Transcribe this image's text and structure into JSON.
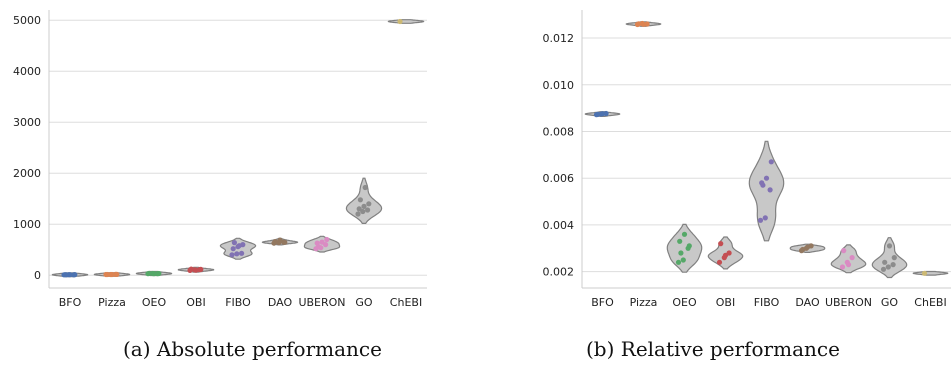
{
  "captions": {
    "a": "(a) Absolute performance",
    "b": "(b) Relative performance"
  },
  "chart_data": [
    {
      "type": "violin",
      "title": "",
      "xlabel": "",
      "ylabel": "",
      "categories": [
        "BFO",
        "Pizza",
        "OEO",
        "OBI",
        "FIBO",
        "DAO",
        "UBERON",
        "GO",
        "ChEBI"
      ],
      "colors": [
        "#4c72b0",
        "#dd8452",
        "#55a868",
        "#c44e52",
        "#8172b3",
        "#937860",
        "#da8bc3",
        "#8c8c8c",
        "#ccb974"
      ],
      "ylim": [
        -250,
        5200
      ],
      "yticks": [
        0,
        1000,
        2000,
        3000,
        4000,
        5000
      ],
      "grid": "horizontal",
      "series": [
        {
          "category": "BFO",
          "points": [
            8,
            10,
            9,
            11,
            10,
            12,
            9
          ]
        },
        {
          "category": "Pizza",
          "points": [
            14,
            15,
            16,
            15,
            14,
            16
          ]
        },
        {
          "category": "OEO",
          "points": [
            30,
            35,
            33,
            38,
            32,
            34
          ]
        },
        {
          "category": "OBI",
          "points": [
            95,
            105,
            110,
            120,
            100,
            115
          ]
        },
        {
          "category": "FIBO",
          "points": [
            400,
            420,
            430,
            520,
            560,
            600,
            640,
            580
          ]
        },
        {
          "category": "DAO",
          "points": [
            630,
            640,
            650,
            660,
            690,
            645
          ]
        },
        {
          "category": "UBERON",
          "points": [
            520,
            540,
            600,
            630,
            650,
            700,
            560
          ]
        },
        {
          "category": "GO",
          "points": [
            1200,
            1250,
            1280,
            1300,
            1350,
            1400,
            1480,
            1720
          ]
        },
        {
          "category": "ChEBI",
          "points": [
            4975
          ]
        }
      ]
    },
    {
      "type": "violin",
      "title": "",
      "xlabel": "",
      "ylabel": "",
      "categories": [
        "BFO",
        "Pizza",
        "OEO",
        "OBI",
        "FIBO",
        "DAO",
        "UBERON",
        "GO",
        "ChEBI"
      ],
      "colors": [
        "#4c72b0",
        "#dd8452",
        "#55a868",
        "#c44e52",
        "#8172b3",
        "#937860",
        "#da8bc3",
        "#8c8c8c",
        "#ccb974"
      ],
      "ylim": [
        0.0013,
        0.0132
      ],
      "yticks": [
        0.002,
        0.004,
        0.006,
        0.008,
        0.01,
        0.012
      ],
      "tick_labels": [
        "0.002",
        "0.004",
        "0.006",
        "0.008",
        "0.010",
        "0.012"
      ],
      "grid": "horizontal",
      "series": [
        {
          "category": "BFO",
          "points": [
            0.00872,
            0.00875,
            0.00877,
            0.00873,
            0.00876
          ]
        },
        {
          "category": "Pizza",
          "points": [
            0.01258,
            0.01262,
            0.0126,
            0.01261,
            0.01259
          ]
        },
        {
          "category": "OEO",
          "points": [
            0.0024,
            0.0025,
            0.003,
            0.0033,
            0.0036,
            0.0031,
            0.0028
          ]
        },
        {
          "category": "OBI",
          "points": [
            0.0024,
            0.0026,
            0.0028,
            0.0032,
            0.0027
          ]
        },
        {
          "category": "FIBO",
          "points": [
            0.0042,
            0.0043,
            0.0055,
            0.0058,
            0.006,
            0.0067,
            0.0057
          ]
        },
        {
          "category": "DAO",
          "points": [
            0.0029,
            0.003,
            0.0031,
            0.00295,
            0.00305
          ]
        },
        {
          "category": "UBERON",
          "points": [
            0.0022,
            0.0024,
            0.0026,
            0.0029,
            0.0023
          ]
        },
        {
          "category": "GO",
          "points": [
            0.0021,
            0.0022,
            0.0023,
            0.0024,
            0.0031,
            0.0026
          ]
        },
        {
          "category": "ChEBI",
          "points": [
            0.00193
          ]
        }
      ]
    }
  ]
}
